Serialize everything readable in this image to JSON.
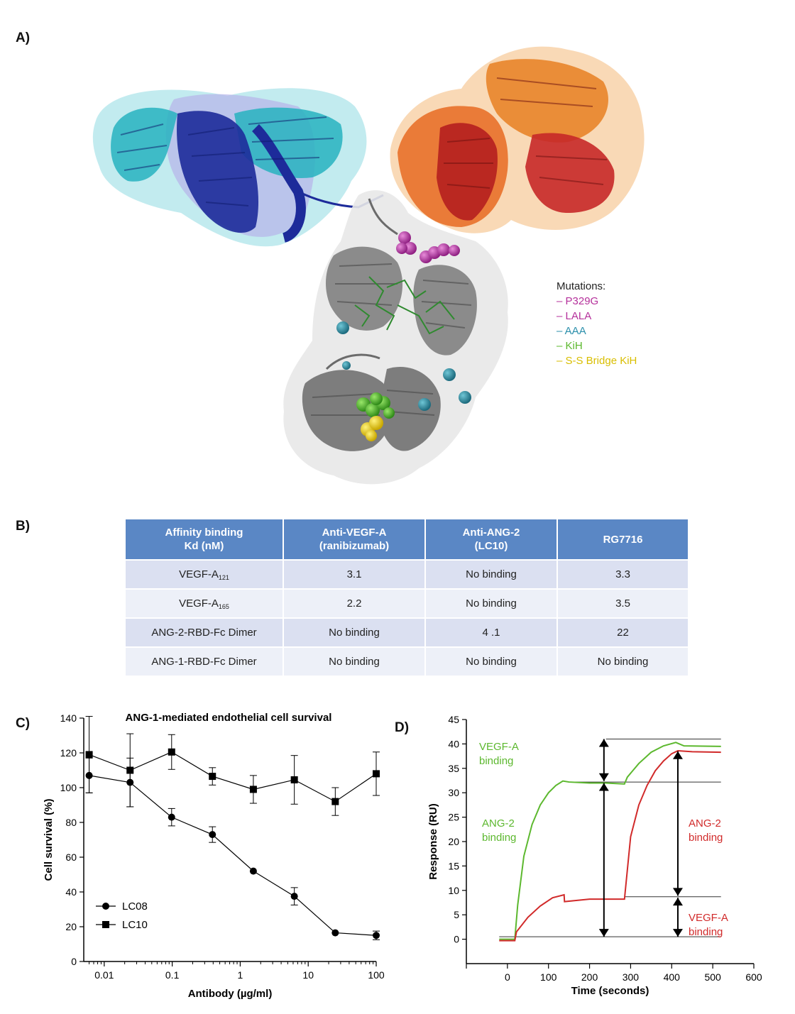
{
  "panel_labels": {
    "a": "A)",
    "b": "B)",
    "c": "C)",
    "d": "D)"
  },
  "mutations_legend": {
    "title": "Mutations:",
    "items": [
      {
        "label": "– P329G",
        "color": "#b5309b"
      },
      {
        "label": "– LALA",
        "color": "#b5309b"
      },
      {
        "label": "– AAA",
        "color": "#2b8fab"
      },
      {
        "label": "– KiH",
        "color": "#5cb82e"
      },
      {
        "label": "– S-S Bridge KiH",
        "color": "#e2c700"
      }
    ]
  },
  "affinity_table": {
    "headers": [
      "Affinity binding\nKd (nM)",
      "Anti-VEGF-A\n(ranibizumab)",
      "Anti-ANG-2\n(LC10)",
      "RG7716"
    ],
    "rows": [
      {
        "name": "VEGF-A",
        "sub": "121",
        "values": [
          "3.1",
          "No binding",
          "3.3"
        ]
      },
      {
        "name": "VEGF-A",
        "sub": "165",
        "values": [
          "2.2",
          "No binding",
          "3.5"
        ]
      },
      {
        "name": "ANG-2-RBD-Fc Dimer",
        "sub": "",
        "values": [
          "No binding",
          "4 .1",
          "22"
        ]
      },
      {
        "name": "ANG-1-RBD-Fc Dimer",
        "sub": "",
        "values": [
          "No binding",
          "No binding",
          "No binding"
        ]
      }
    ]
  },
  "chart_data": [
    {
      "type": "line",
      "title": "ANG-1-mediated endothelial cell survival",
      "xlabel": "Antibody (µg/ml)",
      "ylabel": "Cell survival (%)",
      "x_scale": "log",
      "xlim": [
        0.005,
        100
      ],
      "ylim": [
        0,
        140
      ],
      "x_ticks": [
        "0.01",
        "0.1",
        "1",
        "10",
        "100"
      ],
      "y_ticks": [
        "0",
        "20",
        "40",
        "60",
        "80",
        "100",
        "120",
        "140"
      ],
      "legend_position": "bottom-left",
      "x": [
        0.006,
        0.024,
        0.098,
        0.39,
        1.56,
        6.25,
        25,
        100
      ],
      "series": [
        {
          "name": "LC08",
          "marker": "circle",
          "values": [
            107,
            103,
            83,
            73,
            52,
            37.5,
            16.5,
            15
          ],
          "errors": [
            10,
            14,
            5,
            4.5,
            0,
            5,
            0,
            2.5
          ]
        },
        {
          "name": "LC10",
          "marker": "square",
          "values": [
            119,
            110,
            120.5,
            106.5,
            99,
            104.5,
            92,
            108
          ],
          "errors": [
            22,
            21,
            10,
            5,
            8,
            14,
            8,
            12.5
          ]
        }
      ]
    },
    {
      "type": "line",
      "xlabel": "Time (seconds)",
      "ylabel": "Response (RU)",
      "xlim": [
        -100,
        600
      ],
      "ylim": [
        -5,
        45
      ],
      "x_ticks": [
        "0",
        "100",
        "200",
        "300",
        "400",
        "500",
        "600"
      ],
      "y_ticks": [
        "0",
        "5",
        "10",
        "15",
        "20",
        "25",
        "30",
        "35",
        "40",
        "45"
      ],
      "series": [
        {
          "color": "#5cb82e",
          "x": [
            -20,
            18,
            25,
            40,
            60,
            80,
            100,
            118,
            135,
            150,
            200,
            240,
            285,
            292,
            320,
            350,
            380,
            410,
            430,
            520
          ],
          "values": [
            0,
            0,
            7,
            17,
            23.5,
            27.5,
            30,
            31.5,
            32.4,
            32.2,
            32,
            32,
            31.8,
            33.2,
            36,
            38.3,
            39.6,
            40.3,
            39.6,
            39.5
          ]
        },
        {
          "color": "#d12a2a",
          "x": [
            -20,
            18,
            22,
            50,
            80,
            110,
            138,
            139,
            200,
            285,
            300,
            320,
            340,
            360,
            380,
            400,
            415,
            450,
            520
          ],
          "values": [
            -0.3,
            -0.3,
            1.5,
            4.5,
            6.8,
            8.5,
            9.1,
            7.7,
            8.2,
            8.2,
            21,
            27.5,
            31.5,
            34.5,
            36.5,
            38,
            38.6,
            38.4,
            38.3
          ]
        }
      ],
      "annotations": [
        {
          "text": [
            "VEGF-A",
            "binding"
          ],
          "color": "#5cb82e"
        },
        {
          "text": [
            "ANG-2",
            "binding"
          ],
          "color": "#5cb82e"
        },
        {
          "text": [
            "ANG-2",
            "binding"
          ],
          "color": "#d12a2a"
        },
        {
          "text": [
            "VEGF-A",
            "binding"
          ],
          "color": "#d12a2a"
        }
      ]
    }
  ]
}
